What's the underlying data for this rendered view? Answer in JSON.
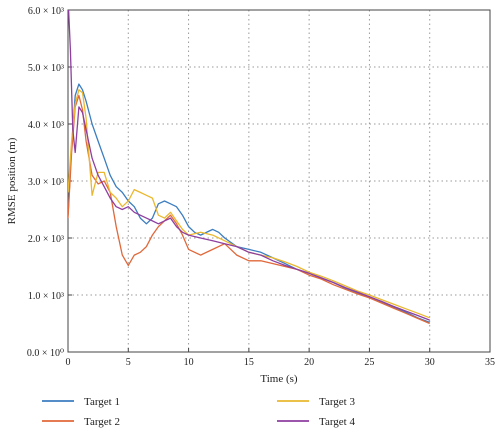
{
  "chart_data": {
    "type": "line",
    "title": "",
    "xlabel": "Time (s)",
    "ylabel": "RMSE position (m)",
    "xlim": [
      0,
      35
    ],
    "ylim": [
      0,
      6000
    ],
    "x_ticks": [
      0,
      5,
      10,
      15,
      20,
      25,
      30,
      35
    ],
    "x_tick_labels": [
      "0",
      "5",
      "10",
      "15",
      "20",
      "25",
      "30",
      "35"
    ],
    "y_ticks": [
      0,
      1000,
      2000,
      3000,
      4000,
      5000,
      6000
    ],
    "y_tick_labels": [
      "0.0 × 10⁰",
      "1.0 × 10³",
      "2.0 × 10³",
      "3.0 × 10³",
      "4.0 × 10³",
      "5.0 × 10³",
      "6.0 × 10³"
    ],
    "grid": true,
    "legend_position": "bottom",
    "series": [
      {
        "name": "Target 1",
        "color": "#3b7dc0",
        "points": [
          [
            0,
            2400
          ],
          [
            0.3,
            3600
          ],
          [
            0.6,
            4500
          ],
          [
            0.9,
            4700
          ],
          [
            1.2,
            4600
          ],
          [
            1.5,
            4400
          ],
          [
            2,
            4000
          ],
          [
            2.5,
            3700
          ],
          [
            3,
            3400
          ],
          [
            3.5,
            3100
          ],
          [
            4,
            2900
          ],
          [
            4.5,
            2800
          ],
          [
            5,
            2650
          ],
          [
            5.5,
            2550
          ],
          [
            6,
            2350
          ],
          [
            6.5,
            2250
          ],
          [
            7,
            2350
          ],
          [
            7.5,
            2600
          ],
          [
            8,
            2650
          ],
          [
            8.5,
            2600
          ],
          [
            9,
            2550
          ],
          [
            9.5,
            2400
          ],
          [
            10,
            2200
          ],
          [
            10.5,
            2100
          ],
          [
            11,
            2050
          ],
          [
            12,
            2150
          ],
          [
            12.5,
            2100
          ],
          [
            13,
            2000
          ],
          [
            14,
            1850
          ],
          [
            15,
            1800
          ],
          [
            16,
            1750
          ],
          [
            17,
            1650
          ],
          [
            18,
            1550
          ],
          [
            19,
            1450
          ],
          [
            20,
            1380
          ],
          [
            21,
            1300
          ],
          [
            22,
            1220
          ],
          [
            23,
            1120
          ],
          [
            24,
            1040
          ],
          [
            25,
            970
          ],
          [
            26,
            880
          ],
          [
            27,
            790
          ],
          [
            28,
            700
          ],
          [
            29,
            600
          ],
          [
            30,
            520
          ]
        ]
      },
      {
        "name": "Target 2",
        "color": "#e0683a",
        "points": [
          [
            0,
            2350
          ],
          [
            0.3,
            3500
          ],
          [
            0.6,
            4300
          ],
          [
            0.9,
            4500
          ],
          [
            1.2,
            4250
          ],
          [
            1.5,
            3700
          ],
          [
            2,
            3100
          ],
          [
            2.5,
            2950
          ],
          [
            3,
            3000
          ],
          [
            3.5,
            2800
          ],
          [
            4,
            2200
          ],
          [
            4.5,
            1700
          ],
          [
            5,
            1520
          ],
          [
            5.5,
            1700
          ],
          [
            6,
            1750
          ],
          [
            6.5,
            1850
          ],
          [
            7,
            2050
          ],
          [
            7.5,
            2200
          ],
          [
            8,
            2300
          ],
          [
            8.5,
            2400
          ],
          [
            9,
            2250
          ],
          [
            9.5,
            2050
          ],
          [
            10,
            1800
          ],
          [
            11,
            1700
          ],
          [
            12,
            1800
          ],
          [
            13,
            1900
          ],
          [
            14,
            1700
          ],
          [
            15,
            1600
          ],
          [
            16,
            1600
          ],
          [
            17,
            1550
          ],
          [
            18,
            1500
          ],
          [
            19,
            1450
          ],
          [
            20,
            1350
          ],
          [
            21,
            1280
          ],
          [
            22,
            1180
          ],
          [
            23,
            1100
          ],
          [
            24,
            1020
          ],
          [
            25,
            950
          ],
          [
            26,
            860
          ],
          [
            27,
            770
          ],
          [
            28,
            680
          ],
          [
            29,
            590
          ],
          [
            30,
            500
          ]
        ]
      },
      {
        "name": "Target 3",
        "color": "#eab830",
        "points": [
          [
            0,
            2800
          ],
          [
            0.3,
            3700
          ],
          [
            0.6,
            4350
          ],
          [
            0.9,
            4600
          ],
          [
            1.2,
            4550
          ],
          [
            1.5,
            4100
          ],
          [
            2,
            2750
          ],
          [
            2.5,
            3150
          ],
          [
            3,
            3150
          ],
          [
            3.5,
            2800
          ],
          [
            4,
            2700
          ],
          [
            4.5,
            2550
          ],
          [
            5,
            2650
          ],
          [
            5.5,
            2850
          ],
          [
            6,
            2800
          ],
          [
            6.5,
            2750
          ],
          [
            7,
            2700
          ],
          [
            7.5,
            2400
          ],
          [
            8,
            2350
          ],
          [
            8.5,
            2450
          ],
          [
            9,
            2300
          ],
          [
            9.5,
            2150
          ],
          [
            10,
            2050
          ],
          [
            11,
            2100
          ],
          [
            12,
            2050
          ],
          [
            13,
            1950
          ],
          [
            14,
            1850
          ],
          [
            15,
            1750
          ],
          [
            16,
            1700
          ],
          [
            17,
            1650
          ],
          [
            18,
            1580
          ],
          [
            19,
            1500
          ],
          [
            20,
            1400
          ],
          [
            21,
            1330
          ],
          [
            22,
            1250
          ],
          [
            23,
            1160
          ],
          [
            24,
            1070
          ],
          [
            25,
            1000
          ],
          [
            26,
            920
          ],
          [
            27,
            840
          ],
          [
            28,
            760
          ],
          [
            29,
            680
          ],
          [
            30,
            600
          ]
        ]
      },
      {
        "name": "Target 4",
        "color": "#8e3fa0",
        "points": [
          [
            0.05,
            6000
          ],
          [
            0.2,
            5300
          ],
          [
            0.4,
            3900
          ],
          [
            0.6,
            3500
          ],
          [
            0.9,
            4300
          ],
          [
            1.2,
            4200
          ],
          [
            1.5,
            3900
          ],
          [
            2,
            3400
          ],
          [
            2.5,
            3100
          ],
          [
            3,
            2900
          ],
          [
            3.5,
            2700
          ],
          [
            4,
            2550
          ],
          [
            4.5,
            2500
          ],
          [
            5,
            2550
          ],
          [
            5.5,
            2450
          ],
          [
            6,
            2400
          ],
          [
            6.5,
            2350
          ],
          [
            7,
            2300
          ],
          [
            7.5,
            2250
          ],
          [
            8,
            2300
          ],
          [
            8.5,
            2350
          ],
          [
            9,
            2200
          ],
          [
            9.5,
            2100
          ],
          [
            10,
            2050
          ],
          [
            11,
            2000
          ],
          [
            12,
            1950
          ],
          [
            13,
            1900
          ],
          [
            14,
            1850
          ],
          [
            15,
            1750
          ],
          [
            16,
            1700
          ],
          [
            17,
            1600
          ],
          [
            18,
            1520
          ],
          [
            19,
            1450
          ],
          [
            20,
            1380
          ],
          [
            21,
            1300
          ],
          [
            22,
            1220
          ],
          [
            23,
            1130
          ],
          [
            24,
            1050
          ],
          [
            25,
            970
          ],
          [
            26,
            890
          ],
          [
            27,
            800
          ],
          [
            28,
            720
          ],
          [
            29,
            640
          ],
          [
            30,
            560
          ]
        ]
      }
    ]
  }
}
